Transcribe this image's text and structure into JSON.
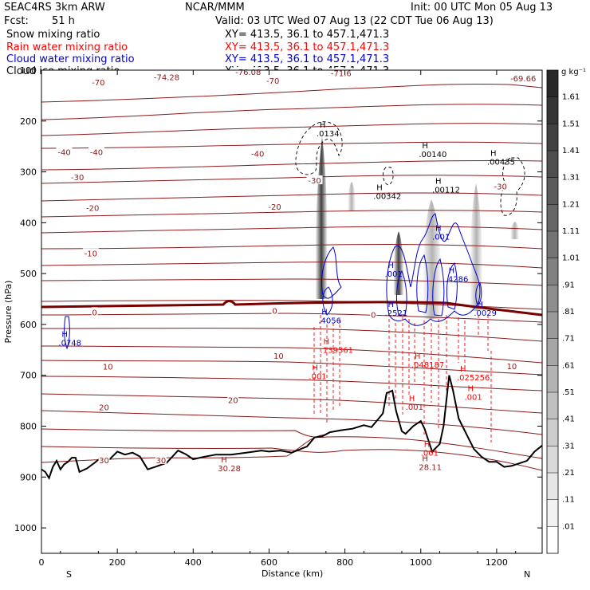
{
  "header": {
    "title": "SEAC4RS  3km ARW",
    "center": "NCAR/MMM",
    "init": "Init: 00 UTC Mon 05 Aug 13",
    "fcst_label": "Fcst:",
    "fcst_value": "51 h",
    "valid": "Valid: 03 UTC Wed 07 Aug 13 (22 CDT Tue 06 Aug 13)",
    "fields": [
      {
        "name": "Snow mixing ratio",
        "xy": "XY= 413.5, 36.1 to 457.1,471.3",
        "color": "#000000"
      },
      {
        "name": "Rain water mixing ratio",
        "xy": "XY= 413.5, 36.1 to 457.1,471.3",
        "color": "#ff0000"
      },
      {
        "name": "Cloud water mixing ratio",
        "xy": "XY= 413.5, 36.1 to 457.1,471.3",
        "color": "#0000cc"
      },
      {
        "name": "Cloud ice mixing ratio",
        "xy": "XY= 413.5, 36.1 to 457.1,471.3",
        "color": "#000000"
      }
    ]
  },
  "colorbar": {
    "unit": "g kg⁻¹",
    "labels": [
      "1.61",
      "1.51",
      "1.41",
      "1.31",
      "1.21",
      "1.11",
      "1.01",
      ".91",
      ".81",
      ".71",
      ".61",
      ".51",
      ".41",
      ".31",
      ".21",
      ".11",
      ".01"
    ]
  },
  "chart_data": {
    "type": "cross-section",
    "xlabel": "Distance (km)",
    "ylabel": "Pressure (hPa)",
    "xlim": [
      0,
      1320
    ],
    "ylim": [
      1050,
      100
    ],
    "y_log_scale": false,
    "x_ticks": [
      "0",
      "200",
      "400",
      "600",
      "800",
      "1000",
      "1200"
    ],
    "y_ticks": [
      "100",
      "200",
      "300",
      "400",
      "500",
      "600",
      "700",
      "800",
      "900",
      "1000"
    ],
    "x_end_labels": {
      "left": "S",
      "right": "N"
    },
    "temperature_isotherms": {
      "units": "degC",
      "color": "#8b1a1a",
      "zero_line_highlight": true,
      "labels": [
        {
          "text": "-70",
          "x": 150,
          "p": 125
        },
        {
          "text": "-70",
          "x": 610,
          "p": 122
        },
        {
          "text": "-74.28",
          "x": 330,
          "p": 115
        },
        {
          "text": "-76.08",
          "x": 545,
          "p": 105
        },
        {
          "text": "-71.6",
          "x": 790,
          "p": 107
        },
        {
          "text": "-69.66",
          "x": 1270,
          "p": 117
        },
        {
          "text": "-40",
          "x": 60,
          "p": 262
        },
        {
          "text": "-40",
          "x": 145,
          "p": 262
        },
        {
          "text": "-40",
          "x": 570,
          "p": 265
        },
        {
          "text": "-30",
          "x": 95,
          "p": 312
        },
        {
          "text": "-30",
          "x": 720,
          "p": 318
        },
        {
          "text": "-30",
          "x": 1210,
          "p": 330
        },
        {
          "text": "-20",
          "x": 135,
          "p": 372
        },
        {
          "text": "-20",
          "x": 615,
          "p": 370
        },
        {
          "text": "-10",
          "x": 130,
          "p": 461
        },
        {
          "text": "0",
          "x": 140,
          "p": 577
        },
        {
          "text": "0",
          "x": 615,
          "p": 574
        },
        {
          "text": "0",
          "x": 875,
          "p": 582
        },
        {
          "text": "10",
          "x": 175,
          "p": 684
        },
        {
          "text": "10",
          "x": 625,
          "p": 663
        },
        {
          "text": "10",
          "x": 1240,
          "p": 683
        },
        {
          "text": "20",
          "x": 165,
          "p": 764
        },
        {
          "text": "20",
          "x": 505,
          "p": 750
        },
        {
          "text": "30",
          "x": 165,
          "p": 868
        },
        {
          "text": "30",
          "x": 315,
          "p": 868
        }
      ]
    },
    "maxima_labels": [
      {
        "text": ".0134",
        "x": 725,
        "p": 222,
        "color": "#000000"
      },
      {
        "text": ".00140",
        "x": 995,
        "p": 263,
        "color": "#000000"
      },
      {
        "text": ".00435",
        "x": 1175,
        "p": 278,
        "color": "#000000"
      },
      {
        "text": ".00342",
        "x": 875,
        "p": 345,
        "color": "#000000"
      },
      {
        "text": ".00112",
        "x": 1030,
        "p": 333,
        "color": "#000000"
      },
      {
        "text": ".001",
        "x": 1030,
        "p": 425,
        "color": "#0000cc"
      },
      {
        "text": ".001",
        "x": 905,
        "p": 498,
        "color": "#0000cc"
      },
      {
        "text": ".4286",
        "x": 1065,
        "p": 508,
        "color": "#0000cc"
      },
      {
        "text": ".4056",
        "x": 730,
        "p": 590,
        "color": "#0000cc"
      },
      {
        "text": ".2521",
        "x": 905,
        "p": 575,
        "color": "#0000cc"
      },
      {
        "text": ".0029",
        "x": 1140,
        "p": 575,
        "color": "#0000cc"
      },
      {
        "text": ".0748",
        "x": 45,
        "p": 634,
        "color": "#0000cc"
      },
      {
        "text": ".139361",
        "x": 735,
        "p": 648,
        "color": "#ff0000"
      },
      {
        "text": ".048187",
        "x": 975,
        "p": 677,
        "color": "#ff0000"
      },
      {
        "text": ".025256",
        "x": 1095,
        "p": 702,
        "color": "#ff0000"
      },
      {
        "text": ".001",
        "x": 705,
        "p": 700,
        "color": "#ff0000"
      },
      {
        "text": ".001",
        "x": 960,
        "p": 760,
        "color": "#ff0000"
      },
      {
        "text": ".001",
        "x": 1115,
        "p": 740,
        "color": "#ff0000"
      },
      {
        "text": ".001",
        "x": 1000,
        "p": 850,
        "color": "#ff0000"
      },
      {
        "text": "28.11",
        "x": 995,
        "p": 878,
        "color": "#8b1a1a"
      },
      {
        "text": "30.28",
        "x": 465,
        "p": 881,
        "color": "#8b1a1a"
      }
    ],
    "terrain_surface_pressure": [
      [
        0,
        885
      ],
      [
        10,
        890
      ],
      [
        20,
        902
      ],
      [
        30,
        880
      ],
      [
        40,
        868
      ],
      [
        50,
        885
      ],
      [
        60,
        875
      ],
      [
        70,
        870
      ],
      [
        80,
        862
      ],
      [
        90,
        862
      ],
      [
        100,
        890
      ],
      [
        120,
        883
      ],
      [
        140,
        872
      ],
      [
        160,
        860
      ],
      [
        180,
        865
      ],
      [
        200,
        850
      ],
      [
        220,
        856
      ],
      [
        240,
        852
      ],
      [
        260,
        860
      ],
      [
        280,
        885
      ],
      [
        300,
        880
      ],
      [
        330,
        872
      ],
      [
        360,
        848
      ],
      [
        380,
        855
      ],
      [
        400,
        865
      ],
      [
        430,
        860
      ],
      [
        460,
        856
      ],
      [
        500,
        856
      ],
      [
        540,
        852
      ],
      [
        580,
        848
      ],
      [
        600,
        850
      ],
      [
        630,
        848
      ],
      [
        660,
        852
      ],
      [
        700,
        840
      ],
      [
        720,
        822
      ],
      [
        740,
        820
      ],
      [
        760,
        812
      ],
      [
        790,
        808
      ],
      [
        820,
        805
      ],
      [
        850,
        798
      ],
      [
        870,
        802
      ],
      [
        900,
        775
      ],
      [
        910,
        735
      ],
      [
        925,
        730
      ],
      [
        935,
        770
      ],
      [
        950,
        810
      ],
      [
        960,
        815
      ],
      [
        980,
        800
      ],
      [
        1000,
        790
      ],
      [
        1010,
        805
      ],
      [
        1030,
        850
      ],
      [
        1050,
        835
      ],
      [
        1060,
        800
      ],
      [
        1075,
        700
      ],
      [
        1085,
        730
      ],
      [
        1100,
        785
      ],
      [
        1120,
        815
      ],
      [
        1140,
        845
      ],
      [
        1160,
        860
      ],
      [
        1180,
        870
      ],
      [
        1200,
        870
      ],
      [
        1220,
        880
      ],
      [
        1240,
        878
      ],
      [
        1260,
        873
      ],
      [
        1280,
        868
      ],
      [
        1300,
        850
      ],
      [
        1320,
        838
      ]
    ]
  }
}
